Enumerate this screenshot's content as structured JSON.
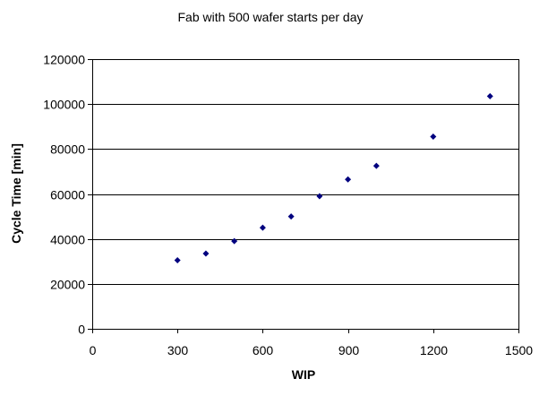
{
  "chart_data": {
    "type": "scatter",
    "title": "Fab with 500 wafer starts per day",
    "xlabel": "WIP",
    "ylabel": "Cycle Time [min]",
    "xlim": [
      0,
      1500
    ],
    "ylim": [
      0,
      120000
    ],
    "x_ticks": [
      0,
      300,
      600,
      900,
      1200,
      1500
    ],
    "y_ticks": [
      0,
      20000,
      40000,
      60000,
      80000,
      100000,
      120000
    ],
    "x_tick_labels": [
      "0",
      "300",
      "600",
      "900",
      "1200",
      "1500"
    ],
    "y_tick_labels": [
      "0",
      "20000",
      "40000",
      "60000",
      "80000",
      "100000",
      "120000"
    ],
    "grid": "horizontal",
    "legend": "none",
    "marker": "diamond",
    "series": [
      {
        "points": [
          {
            "x": 300,
            "y": 30500
          },
          {
            "x": 400,
            "y": 33500
          },
          {
            "x": 500,
            "y": 39000
          },
          {
            "x": 600,
            "y": 45000
          },
          {
            "x": 700,
            "y": 50000
          },
          {
            "x": 800,
            "y": 59000
          },
          {
            "x": 900,
            "y": 66500
          },
          {
            "x": 1000,
            "y": 72500
          },
          {
            "x": 1200,
            "y": 85500
          },
          {
            "x": 1400,
            "y": 103500
          }
        ]
      }
    ],
    "colors": {
      "marker": "#00007f",
      "grid": "#000000",
      "axis": "#000000",
      "background": "#ffffff"
    }
  }
}
